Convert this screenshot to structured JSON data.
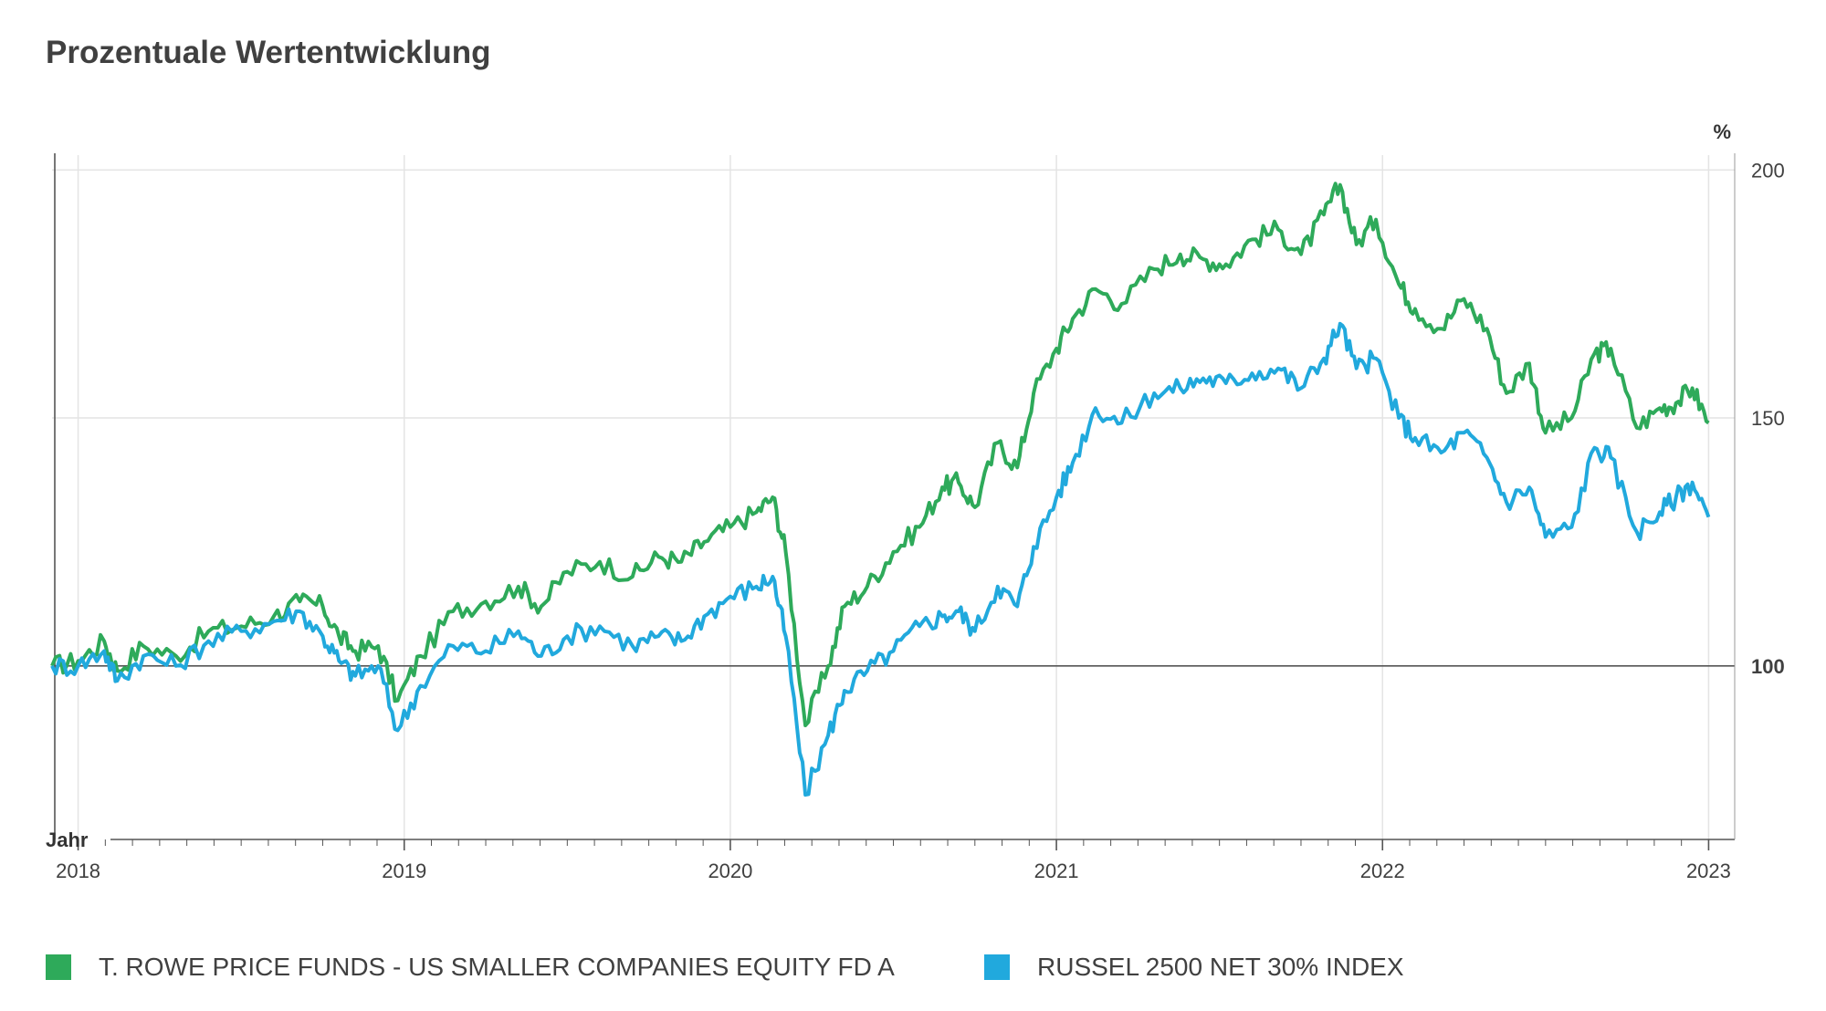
{
  "page": {
    "title": "Prozentuale Wertentwicklung"
  },
  "chart_data": {
    "type": "line",
    "title": "Prozentuale Wertentwicklung",
    "xlabel": "Jahr",
    "ylabel": "%",
    "x_ticks": [
      "2018",
      "2019",
      "2020",
      "2021",
      "2022",
      "2023"
    ],
    "y_ticks": [
      100,
      150,
      200
    ],
    "y_baseline": 100,
    "xlim": [
      2017.92,
      2023.08
    ],
    "ylim": [
      65,
      203
    ],
    "grid": true,
    "legend_position": "bottom",
    "series": [
      {
        "name": "T. ROWE PRICE FUNDS - US SMALLER COMPANIES EQUITY FD A",
        "color": "#2eaa5a",
        "points": [
          [
            2017.92,
            100
          ],
          [
            2018.0,
            101
          ],
          [
            2018.08,
            105
          ],
          [
            2018.12,
            99
          ],
          [
            2018.2,
            104
          ],
          [
            2018.3,
            102
          ],
          [
            2018.4,
            107
          ],
          [
            2018.5,
            108
          ],
          [
            2018.6,
            110
          ],
          [
            2018.68,
            113
          ],
          [
            2018.75,
            112
          ],
          [
            2018.8,
            106
          ],
          [
            2018.85,
            103
          ],
          [
            2018.92,
            104
          ],
          [
            2018.98,
            93
          ],
          [
            2019.05,
            102
          ],
          [
            2019.15,
            111
          ],
          [
            2019.25,
            113
          ],
          [
            2019.35,
            116
          ],
          [
            2019.42,
            112
          ],
          [
            2019.5,
            119
          ],
          [
            2019.6,
            121
          ],
          [
            2019.7,
            118
          ],
          [
            2019.78,
            122
          ],
          [
            2019.85,
            121
          ],
          [
            2019.92,
            125
          ],
          [
            2020.0,
            128
          ],
          [
            2020.08,
            131
          ],
          [
            2020.13,
            134
          ],
          [
            2020.17,
            123
          ],
          [
            2020.23,
            88
          ],
          [
            2020.3,
            100
          ],
          [
            2020.35,
            112
          ],
          [
            2020.42,
            116
          ],
          [
            2020.5,
            123
          ],
          [
            2020.58,
            128
          ],
          [
            2020.65,
            136
          ],
          [
            2020.7,
            137
          ],
          [
            2020.75,
            132
          ],
          [
            2020.82,
            145
          ],
          [
            2020.88,
            140
          ],
          [
            2020.93,
            155
          ],
          [
            2021.0,
            164
          ],
          [
            2021.05,
            170
          ],
          [
            2021.12,
            176
          ],
          [
            2021.2,
            173
          ],
          [
            2021.3,
            180
          ],
          [
            2021.38,
            183
          ],
          [
            2021.45,
            182
          ],
          [
            2021.52,
            181
          ],
          [
            2021.6,
            186
          ],
          [
            2021.68,
            188
          ],
          [
            2021.75,
            183
          ],
          [
            2021.82,
            191
          ],
          [
            2021.87,
            197
          ],
          [
            2021.92,
            185
          ],
          [
            2021.98,
            190
          ],
          [
            2022.05,
            177
          ],
          [
            2022.1,
            172
          ],
          [
            2022.18,
            168
          ],
          [
            2022.25,
            174
          ],
          [
            2022.32,
            168
          ],
          [
            2022.38,
            155
          ],
          [
            2022.45,
            161
          ],
          [
            2022.5,
            147
          ],
          [
            2022.58,
            150
          ],
          [
            2022.65,
            163
          ],
          [
            2022.7,
            164
          ],
          [
            2022.78,
            148
          ],
          [
            2022.85,
            152
          ],
          [
            2022.9,
            153
          ],
          [
            2022.95,
            156
          ],
          [
            2023.0,
            149
          ]
        ]
      },
      {
        "name": "RUSSEL 2500 NET 30% INDEX",
        "color": "#21a9dd",
        "points": [
          [
            2017.92,
            100
          ],
          [
            2018.0,
            100
          ],
          [
            2018.08,
            103
          ],
          [
            2018.12,
            97
          ],
          [
            2018.2,
            102
          ],
          [
            2018.3,
            100
          ],
          [
            2018.4,
            105
          ],
          [
            2018.5,
            107
          ],
          [
            2018.6,
            109
          ],
          [
            2018.68,
            111
          ],
          [
            2018.75,
            106
          ],
          [
            2018.8,
            101
          ],
          [
            2018.85,
            98
          ],
          [
            2018.92,
            100
          ],
          [
            2018.98,
            87
          ],
          [
            2019.05,
            96
          ],
          [
            2019.15,
            104
          ],
          [
            2019.25,
            103
          ],
          [
            2019.35,
            107
          ],
          [
            2019.42,
            102
          ],
          [
            2019.5,
            106
          ],
          [
            2019.6,
            108
          ],
          [
            2019.7,
            104
          ],
          [
            2019.78,
            106
          ],
          [
            2019.85,
            105
          ],
          [
            2019.92,
            110
          ],
          [
            2020.0,
            114
          ],
          [
            2020.08,
            116
          ],
          [
            2020.13,
            118
          ],
          [
            2020.17,
            106
          ],
          [
            2020.23,
            74
          ],
          [
            2020.3,
            86
          ],
          [
            2020.35,
            95
          ],
          [
            2020.42,
            99
          ],
          [
            2020.5,
            103
          ],
          [
            2020.58,
            108
          ],
          [
            2020.65,
            110
          ],
          [
            2020.7,
            111
          ],
          [
            2020.75,
            107
          ],
          [
            2020.82,
            116
          ],
          [
            2020.88,
            112
          ],
          [
            2020.93,
            124
          ],
          [
            2021.0,
            134
          ],
          [
            2021.05,
            141
          ],
          [
            2021.12,
            152
          ],
          [
            2021.2,
            149
          ],
          [
            2021.3,
            155
          ],
          [
            2021.38,
            156
          ],
          [
            2021.45,
            158
          ],
          [
            2021.52,
            157
          ],
          [
            2021.6,
            159
          ],
          [
            2021.68,
            160
          ],
          [
            2021.75,
            156
          ],
          [
            2021.82,
            162
          ],
          [
            2021.87,
            169
          ],
          [
            2021.92,
            160
          ],
          [
            2021.98,
            162
          ],
          [
            2022.05,
            150
          ],
          [
            2022.1,
            146
          ],
          [
            2022.18,
            143
          ],
          [
            2022.25,
            147
          ],
          [
            2022.32,
            142
          ],
          [
            2022.38,
            133
          ],
          [
            2022.45,
            136
          ],
          [
            2022.5,
            126
          ],
          [
            2022.58,
            128
          ],
          [
            2022.65,
            144
          ],
          [
            2022.7,
            142
          ],
          [
            2022.78,
            127
          ],
          [
            2022.85,
            131
          ],
          [
            2022.9,
            134
          ],
          [
            2022.95,
            137
          ],
          [
            2023.0,
            130
          ]
        ]
      }
    ]
  }
}
